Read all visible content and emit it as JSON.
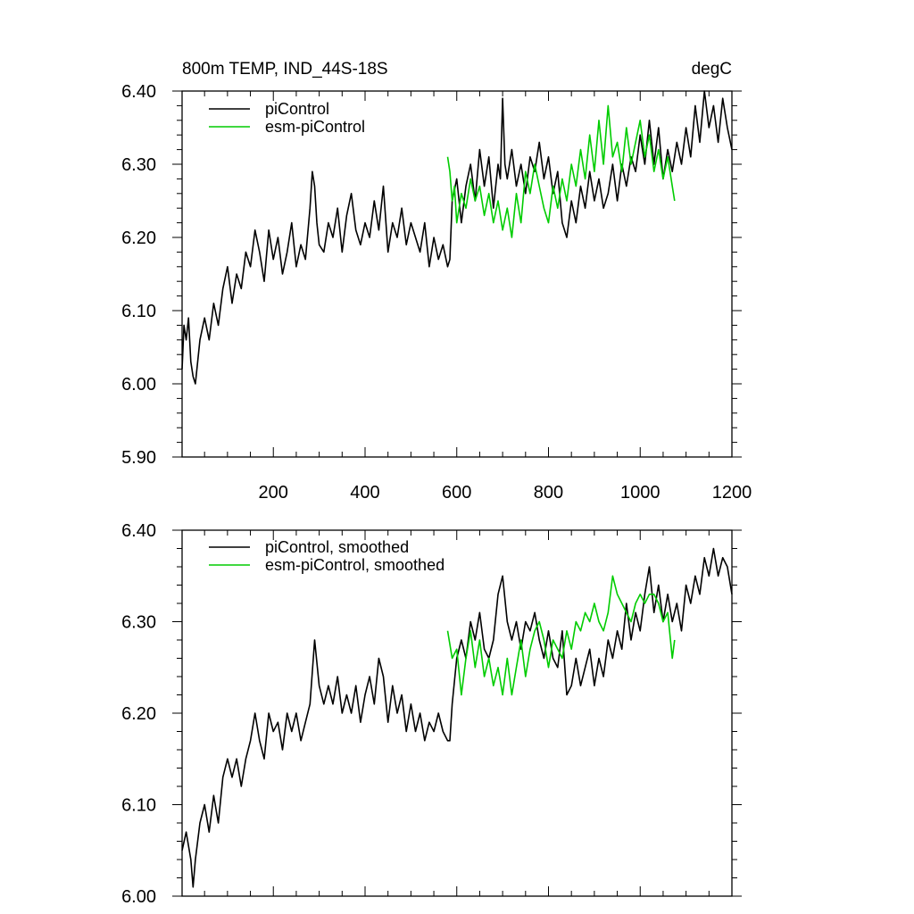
{
  "figure": {
    "title_left": "800m TEMP, IND_44S-18S",
    "title_right": "degC"
  },
  "chart_data": [
    {
      "type": "line",
      "title": "800m TEMP, IND_44S-18S",
      "units": "degC",
      "xlim": [
        1,
        1200
      ],
      "ylim": [
        5.9,
        6.4
      ],
      "xticks": [
        200,
        400,
        600,
        800,
        1000,
        1200
      ],
      "xtick_labels": [
        "200",
        "400",
        "600",
        "800",
        "1000",
        "1200"
      ],
      "yticks": [
        5.9,
        6.0,
        6.1,
        6.2,
        6.3,
        6.4
      ],
      "ytick_labels": [
        "5.90",
        "6.00",
        "6.10",
        "6.20",
        "6.30",
        "6.40"
      ],
      "legend_position": "top-left",
      "series": [
        {
          "name": "piControl",
          "color": "#000000",
          "x": [
            1,
            5,
            10,
            15,
            20,
            25,
            30,
            40,
            50,
            60,
            70,
            80,
            90,
            100,
            110,
            120,
            130,
            140,
            150,
            160,
            170,
            180,
            190,
            200,
            210,
            220,
            230,
            240,
            250,
            260,
            270,
            280,
            285,
            290,
            295,
            300,
            310,
            320,
            330,
            340,
            350,
            360,
            370,
            380,
            390,
            400,
            410,
            420,
            430,
            440,
            450,
            460,
            470,
            480,
            490,
            500,
            510,
            520,
            530,
            540,
            550,
            560,
            570,
            580,
            585,
            590,
            600,
            610,
            620,
            630,
            640,
            650,
            660,
            670,
            680,
            690,
            695,
            700,
            705,
            710,
            720,
            730,
            740,
            750,
            760,
            770,
            780,
            790,
            800,
            810,
            820,
            830,
            840,
            850,
            860,
            870,
            880,
            890,
            900,
            910,
            920,
            930,
            940,
            950,
            960,
            970,
            980,
            990,
            1000,
            1010,
            1020,
            1030,
            1040,
            1050,
            1060,
            1070,
            1080,
            1090,
            1100,
            1110,
            1120,
            1130,
            1140,
            1150,
            1160,
            1170,
            1180,
            1190,
            1200
          ],
          "values": [
            6.02,
            6.08,
            6.06,
            6.09,
            6.03,
            6.01,
            6.0,
            6.06,
            6.09,
            6.06,
            6.11,
            6.08,
            6.13,
            6.16,
            6.11,
            6.15,
            6.13,
            6.18,
            6.16,
            6.21,
            6.18,
            6.14,
            6.21,
            6.17,
            6.2,
            6.15,
            6.18,
            6.22,
            6.16,
            6.19,
            6.17,
            6.24,
            6.29,
            6.27,
            6.22,
            6.19,
            6.18,
            6.22,
            6.2,
            6.24,
            6.18,
            6.23,
            6.26,
            6.21,
            6.19,
            6.22,
            6.2,
            6.25,
            6.21,
            6.27,
            6.18,
            6.22,
            6.2,
            6.24,
            6.19,
            6.22,
            6.2,
            6.18,
            6.22,
            6.16,
            6.2,
            6.17,
            6.19,
            6.16,
            6.17,
            6.25,
            6.28,
            6.22,
            6.27,
            6.3,
            6.25,
            6.32,
            6.27,
            6.31,
            6.24,
            6.3,
            6.28,
            6.39,
            6.3,
            6.28,
            6.32,
            6.27,
            6.3,
            6.26,
            6.31,
            6.29,
            6.33,
            6.28,
            6.31,
            6.26,
            6.29,
            6.22,
            6.2,
            6.25,
            6.22,
            6.27,
            6.24,
            6.29,
            6.25,
            6.28,
            6.24,
            6.26,
            6.3,
            6.25,
            6.3,
            6.27,
            6.31,
            6.29,
            6.34,
            6.3,
            6.36,
            6.3,
            6.35,
            6.28,
            6.32,
            6.29,
            6.33,
            6.3,
            6.35,
            6.31,
            6.38,
            6.33,
            6.4,
            6.35,
            6.38,
            6.33,
            6.39,
            6.35,
            6.32
          ]
        },
        {
          "name": "esm-piControl",
          "color": "#00cc00",
          "x": [
            580,
            585,
            590,
            595,
            600,
            610,
            620,
            630,
            640,
            650,
            660,
            670,
            680,
            690,
            700,
            710,
            720,
            730,
            740,
            750,
            760,
            770,
            780,
            790,
            800,
            810,
            820,
            830,
            840,
            850,
            860,
            870,
            880,
            890,
            900,
            910,
            920,
            930,
            940,
            950,
            960,
            970,
            980,
            990,
            1000,
            1010,
            1020,
            1030,
            1040,
            1050,
            1060,
            1070,
            1075
          ],
          "values": [
            6.31,
            6.29,
            6.25,
            6.27,
            6.22,
            6.26,
            6.24,
            6.28,
            6.25,
            6.27,
            6.23,
            6.26,
            6.22,
            6.25,
            6.21,
            6.24,
            6.2,
            6.26,
            6.22,
            6.29,
            6.26,
            6.3,
            6.27,
            6.24,
            6.22,
            6.27,
            6.24,
            6.28,
            6.25,
            6.3,
            6.27,
            6.32,
            6.28,
            6.34,
            6.29,
            6.36,
            6.3,
            6.38,
            6.31,
            6.33,
            6.29,
            6.35,
            6.3,
            6.33,
            6.36,
            6.31,
            6.34,
            6.29,
            6.32,
            6.28,
            6.31,
            6.27,
            6.25
          ]
        }
      ]
    },
    {
      "type": "line",
      "xlim": [
        1,
        1200
      ],
      "ylim": [
        6.0,
        6.4
      ],
      "xticks": [
        200,
        400,
        600,
        800,
        1000,
        1200
      ],
      "yticks": [
        6.0,
        6.1,
        6.2,
        6.3,
        6.4
      ],
      "ytick_labels": [
        "6.00",
        "6.10",
        "6.20",
        "6.30",
        "6.40"
      ],
      "legend_position": "top-left",
      "series": [
        {
          "name": "piControl, smoothed",
          "color": "#000000",
          "x": [
            1,
            10,
            20,
            25,
            30,
            40,
            50,
            60,
            70,
            80,
            90,
            100,
            110,
            120,
            130,
            140,
            150,
            160,
            170,
            180,
            190,
            200,
            210,
            220,
            230,
            240,
            250,
            260,
            270,
            280,
            290,
            300,
            310,
            320,
            330,
            340,
            350,
            360,
            370,
            380,
            390,
            400,
            410,
            420,
            430,
            440,
            450,
            460,
            470,
            480,
            490,
            500,
            510,
            520,
            530,
            540,
            550,
            560,
            570,
            580,
            585,
            590,
            600,
            610,
            620,
            630,
            640,
            650,
            660,
            670,
            680,
            690,
            700,
            710,
            720,
            730,
            740,
            750,
            760,
            770,
            780,
            790,
            800,
            810,
            820,
            830,
            840,
            850,
            860,
            870,
            880,
            890,
            900,
            910,
            920,
            930,
            940,
            950,
            960,
            970,
            980,
            990,
            1000,
            1010,
            1020,
            1030,
            1040,
            1050,
            1060,
            1070,
            1080,
            1090,
            1100,
            1110,
            1120,
            1130,
            1140,
            1150,
            1160,
            1170,
            1180,
            1190,
            1200
          ],
          "values": [
            6.05,
            6.07,
            6.04,
            6.01,
            6.04,
            6.08,
            6.1,
            6.07,
            6.11,
            6.08,
            6.13,
            6.15,
            6.13,
            6.15,
            6.12,
            6.15,
            6.17,
            6.2,
            6.17,
            6.15,
            6.2,
            6.18,
            6.19,
            6.16,
            6.2,
            6.18,
            6.2,
            6.17,
            6.19,
            6.21,
            6.28,
            6.23,
            6.21,
            6.23,
            6.21,
            6.24,
            6.2,
            6.22,
            6.2,
            6.23,
            6.19,
            6.22,
            6.24,
            6.21,
            6.26,
            6.24,
            6.19,
            6.23,
            6.2,
            6.22,
            6.18,
            6.21,
            6.18,
            6.2,
            6.17,
            6.19,
            6.18,
            6.2,
            6.18,
            6.17,
            6.17,
            6.21,
            6.26,
            6.28,
            6.26,
            6.3,
            6.28,
            6.31,
            6.27,
            6.26,
            6.28,
            6.33,
            6.35,
            6.3,
            6.28,
            6.3,
            6.27,
            6.3,
            6.29,
            6.31,
            6.28,
            6.26,
            6.29,
            6.26,
            6.25,
            6.29,
            6.22,
            6.23,
            6.26,
            6.23,
            6.25,
            6.27,
            6.23,
            6.26,
            6.24,
            6.28,
            6.26,
            6.29,
            6.27,
            6.32,
            6.28,
            6.31,
            6.29,
            6.33,
            6.36,
            6.31,
            6.34,
            6.3,
            6.33,
            6.3,
            6.32,
            6.29,
            6.34,
            6.32,
            6.35,
            6.33,
            6.37,
            6.35,
            6.38,
            6.35,
            6.37,
            6.36,
            6.33
          ]
        },
        {
          "name": "esm-piControl, smoothed",
          "color": "#00cc00",
          "x": [
            580,
            590,
            600,
            610,
            620,
            630,
            640,
            650,
            660,
            670,
            680,
            690,
            700,
            710,
            720,
            730,
            740,
            750,
            760,
            770,
            780,
            790,
            800,
            810,
            820,
            830,
            840,
            850,
            860,
            870,
            880,
            890,
            900,
            910,
            920,
            930,
            940,
            950,
            960,
            970,
            980,
            990,
            1000,
            1010,
            1020,
            1030,
            1040,
            1050,
            1060,
            1070,
            1075
          ],
          "values": [
            6.29,
            6.26,
            6.27,
            6.22,
            6.26,
            6.29,
            6.25,
            6.28,
            6.24,
            6.26,
            6.23,
            6.25,
            6.22,
            6.26,
            6.22,
            6.25,
            6.28,
            6.24,
            6.27,
            6.29,
            6.3,
            6.28,
            6.25,
            6.28,
            6.27,
            6.26,
            6.29,
            6.27,
            6.3,
            6.29,
            6.31,
            6.3,
            6.32,
            6.3,
            6.29,
            6.31,
            6.35,
            6.33,
            6.32,
            6.31,
            6.3,
            6.32,
            6.33,
            6.32,
            6.33,
            6.33,
            6.32,
            6.3,
            6.31,
            6.26,
            6.28
          ]
        }
      ]
    }
  ]
}
